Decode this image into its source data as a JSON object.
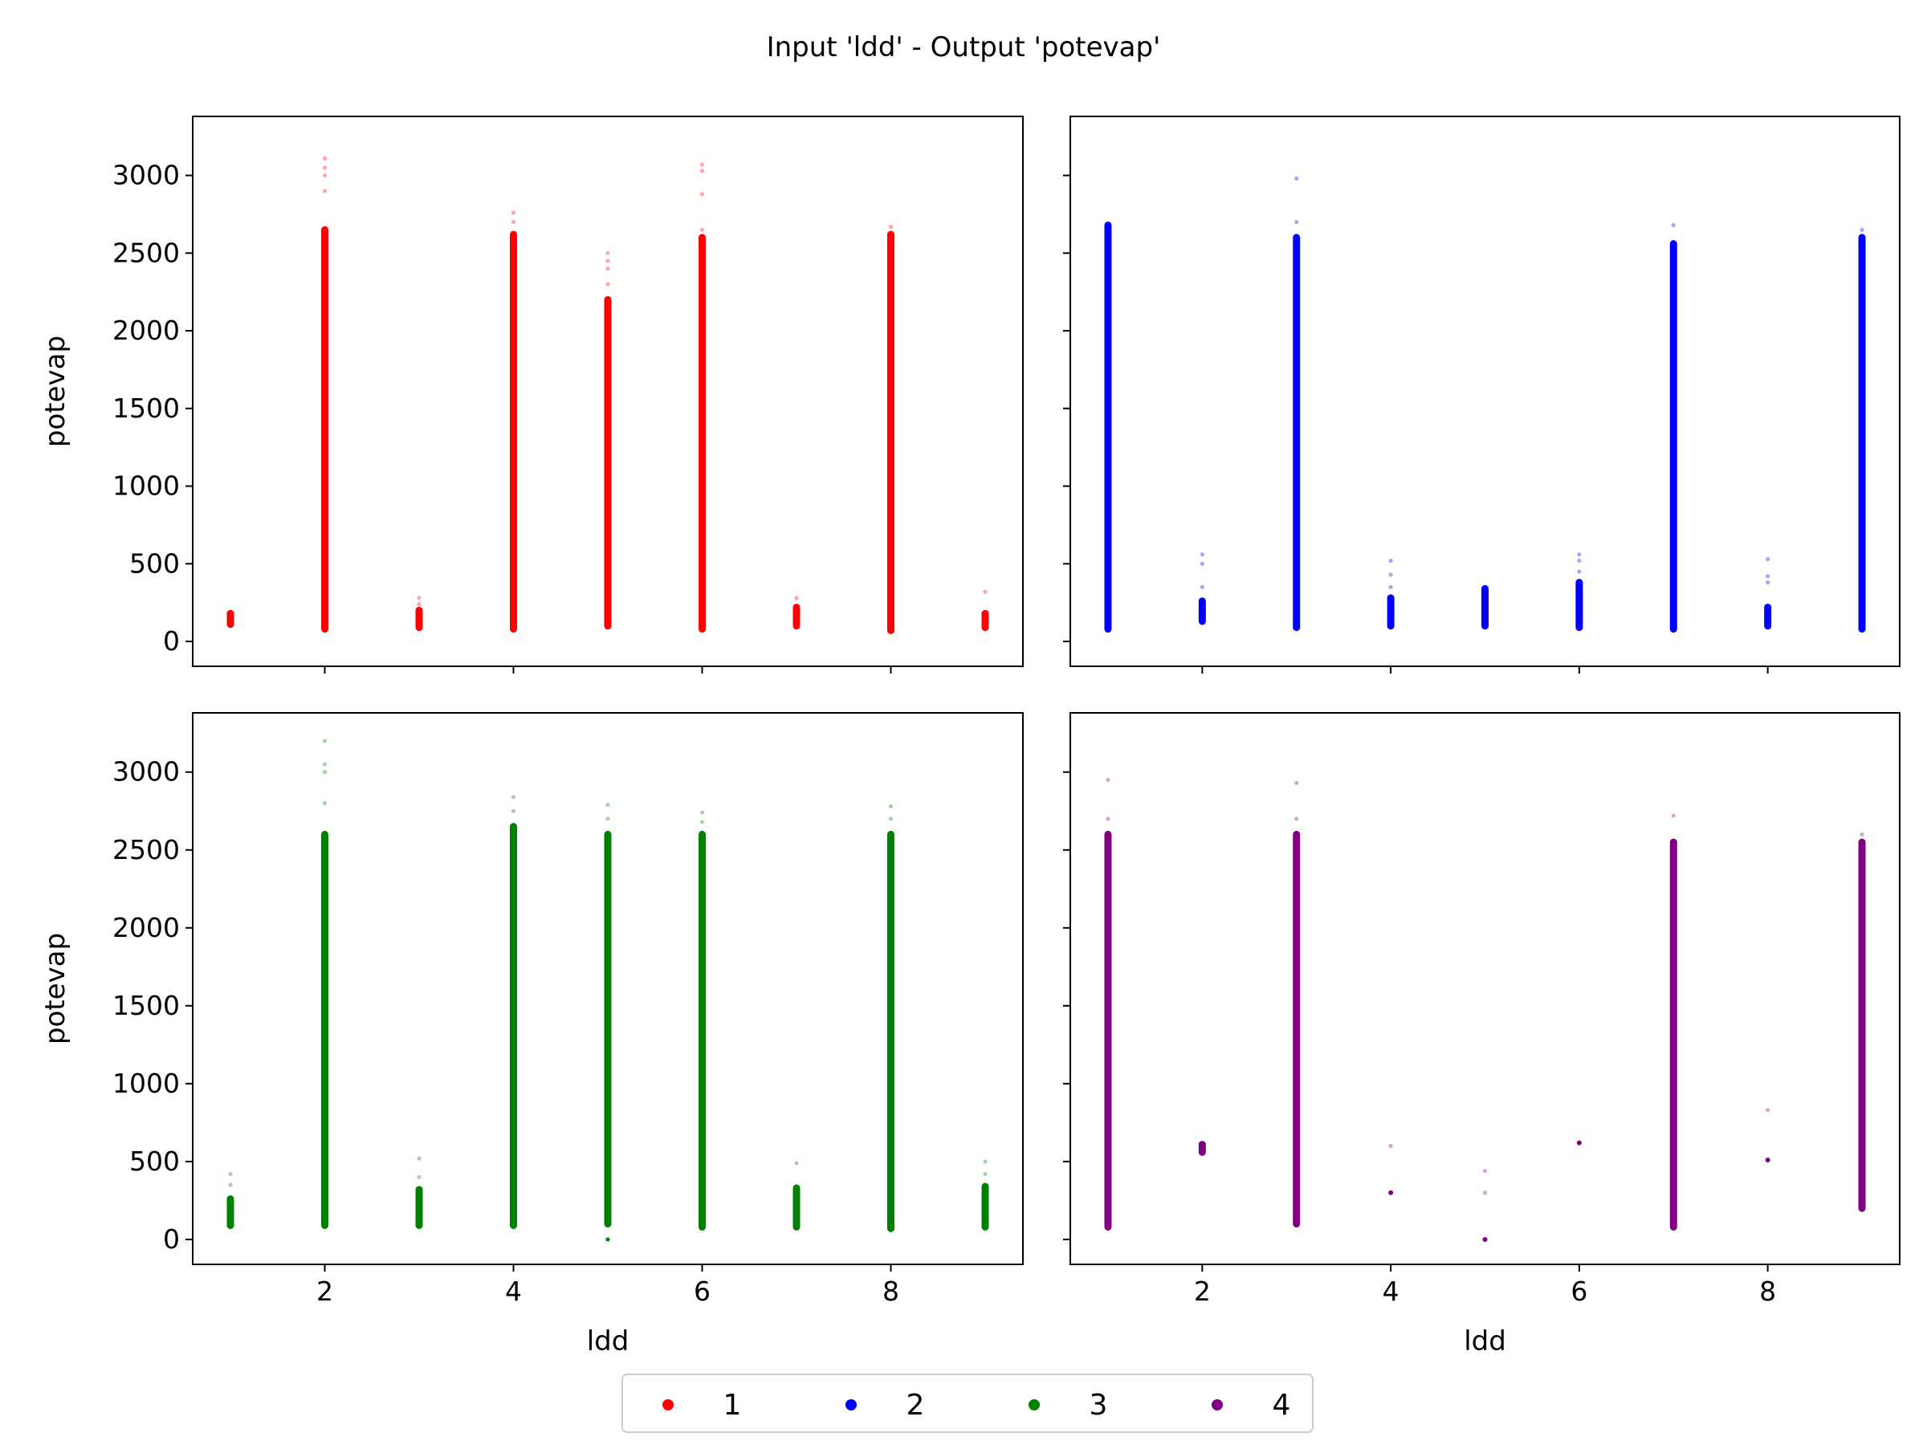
{
  "figure": {
    "title": "Input 'ldd' - Output 'potevap'"
  },
  "legend": {
    "placement": "bottom-center",
    "entries": [
      {
        "label": "1",
        "color": "#ff0000"
      },
      {
        "label": "2",
        "color": "#0000ff"
      },
      {
        "label": "3",
        "color": "#008000"
      },
      {
        "label": "4",
        "color": "#800080"
      }
    ]
  },
  "chart_data": [
    {
      "type": "scatter",
      "panel": "top-left",
      "series_label": "1",
      "color": "#ff0000",
      "xlabel": "",
      "ylabel": "potevap",
      "xlim": [
        0.6,
        9.4
      ],
      "ylim": [
        -160,
        3380
      ],
      "xticks": [
        2,
        4,
        6,
        8
      ],
      "yticks": [
        0,
        500,
        1000,
        1500,
        2000,
        2500,
        3000
      ],
      "show_xticklabels": false,
      "show_yticklabels": true,
      "grid": false,
      "columns": [
        {
          "x": 1,
          "min": 110,
          "max": 180,
          "outliers": []
        },
        {
          "x": 2,
          "min": 80,
          "max": 2650,
          "outliers": [
            2900,
            3000,
            3050,
            3110
          ]
        },
        {
          "x": 3,
          "min": 90,
          "max": 200,
          "outliers": [
            240,
            280
          ]
        },
        {
          "x": 4,
          "min": 80,
          "max": 2620,
          "outliers": [
            2700,
            2760
          ]
        },
        {
          "x": 5,
          "min": 100,
          "max": 2200,
          "outliers": [
            2300,
            2400,
            2450,
            2500
          ]
        },
        {
          "x": 6,
          "min": 80,
          "max": 2600,
          "outliers": [
            2650,
            2880,
            3030,
            3070
          ]
        },
        {
          "x": 7,
          "min": 100,
          "max": 220,
          "outliers": [
            280
          ]
        },
        {
          "x": 8,
          "min": 70,
          "max": 2620,
          "outliers": [
            2670
          ]
        },
        {
          "x": 9,
          "min": 90,
          "max": 180,
          "outliers": [
            320
          ]
        }
      ]
    },
    {
      "type": "scatter",
      "panel": "top-right",
      "series_label": "2",
      "color": "#0000ff",
      "xlabel": "",
      "ylabel": "",
      "xlim": [
        0.6,
        9.4
      ],
      "ylim": [
        -160,
        3380
      ],
      "xticks": [
        2,
        4,
        6,
        8
      ],
      "yticks": [
        0,
        500,
        1000,
        1500,
        2000,
        2500,
        3000
      ],
      "show_xticklabels": false,
      "show_yticklabels": false,
      "grid": false,
      "columns": [
        {
          "x": 1,
          "min": 80,
          "max": 2680,
          "outliers": []
        },
        {
          "x": 2,
          "min": 130,
          "max": 260,
          "outliers": [
            350,
            500,
            560
          ]
        },
        {
          "x": 3,
          "min": 90,
          "max": 2600,
          "outliers": [
            2700,
            2980
          ]
        },
        {
          "x": 4,
          "min": 100,
          "max": 280,
          "outliers": [
            350,
            430,
            520
          ]
        },
        {
          "x": 5,
          "min": 100,
          "max": 340,
          "outliers": []
        },
        {
          "x": 6,
          "min": 90,
          "max": 380,
          "outliers": [
            450,
            520,
            560
          ]
        },
        {
          "x": 7,
          "min": 80,
          "max": 2560,
          "outliers": [
            2680
          ]
        },
        {
          "x": 8,
          "min": 100,
          "max": 220,
          "outliers": [
            380,
            420,
            530
          ]
        },
        {
          "x": 9,
          "min": 80,
          "max": 2600,
          "outliers": [
            2650
          ]
        }
      ]
    },
    {
      "type": "scatter",
      "panel": "bottom-left",
      "series_label": "3",
      "color": "#008000",
      "xlabel": "ldd",
      "ylabel": "potevap",
      "xlim": [
        0.6,
        9.4
      ],
      "ylim": [
        -160,
        3380
      ],
      "xticks": [
        2,
        4,
        6,
        8
      ],
      "yticks": [
        0,
        500,
        1000,
        1500,
        2000,
        2500,
        3000
      ],
      "show_xticklabels": true,
      "show_yticklabels": true,
      "grid": false,
      "columns": [
        {
          "x": 1,
          "min": 90,
          "max": 260,
          "outliers": [
            350,
            420
          ]
        },
        {
          "x": 2,
          "min": 90,
          "max": 2600,
          "outliers": [
            2800,
            3000,
            3050,
            3200
          ]
        },
        {
          "x": 3,
          "min": 90,
          "max": 320,
          "outliers": [
            400,
            520
          ]
        },
        {
          "x": 4,
          "min": 90,
          "max": 2650,
          "outliers": [
            2750,
            2840
          ]
        },
        {
          "x": 5,
          "min": 100,
          "max": 2600,
          "outliers": [
            2700,
            2790,
            0
          ]
        },
        {
          "x": 6,
          "min": 80,
          "max": 2600,
          "outliers": [
            2680,
            2740
          ]
        },
        {
          "x": 7,
          "min": 80,
          "max": 330,
          "outliers": [
            490
          ]
        },
        {
          "x": 8,
          "min": 70,
          "max": 2600,
          "outliers": [
            2700,
            2780
          ]
        },
        {
          "x": 9,
          "min": 80,
          "max": 340,
          "outliers": [
            420,
            500
          ]
        }
      ]
    },
    {
      "type": "scatter",
      "panel": "bottom-right",
      "series_label": "4",
      "color": "#800080",
      "xlabel": "ldd",
      "ylabel": "",
      "xlim": [
        0.6,
        9.4
      ],
      "ylim": [
        -160,
        3380
      ],
      "xticks": [
        2,
        4,
        6,
        8
      ],
      "yticks": [
        0,
        500,
        1000,
        1500,
        2000,
        2500,
        3000
      ],
      "show_xticklabels": true,
      "show_yticklabels": false,
      "grid": false,
      "columns": [
        {
          "x": 1,
          "min": 80,
          "max": 2600,
          "outliers": [
            2700,
            2950
          ]
        },
        {
          "x": 2,
          "min": 560,
          "max": 610,
          "outliers": []
        },
        {
          "x": 3,
          "min": 100,
          "max": 2600,
          "outliers": [
            2700,
            2930
          ]
        },
        {
          "x": 4,
          "min": 300,
          "max": 300,
          "outliers": [
            600
          ]
        },
        {
          "x": 5,
          "min": 0,
          "max": 0,
          "outliers": [
            300,
            440
          ]
        },
        {
          "x": 6,
          "min": 620,
          "max": 620,
          "outliers": []
        },
        {
          "x": 7,
          "min": 80,
          "max": 2550,
          "outliers": [
            2720
          ]
        },
        {
          "x": 8,
          "min": 510,
          "max": 510,
          "outliers": [
            830
          ]
        },
        {
          "x": 9,
          "min": 200,
          "max": 2550,
          "outliers": [
            2600
          ]
        }
      ]
    }
  ]
}
